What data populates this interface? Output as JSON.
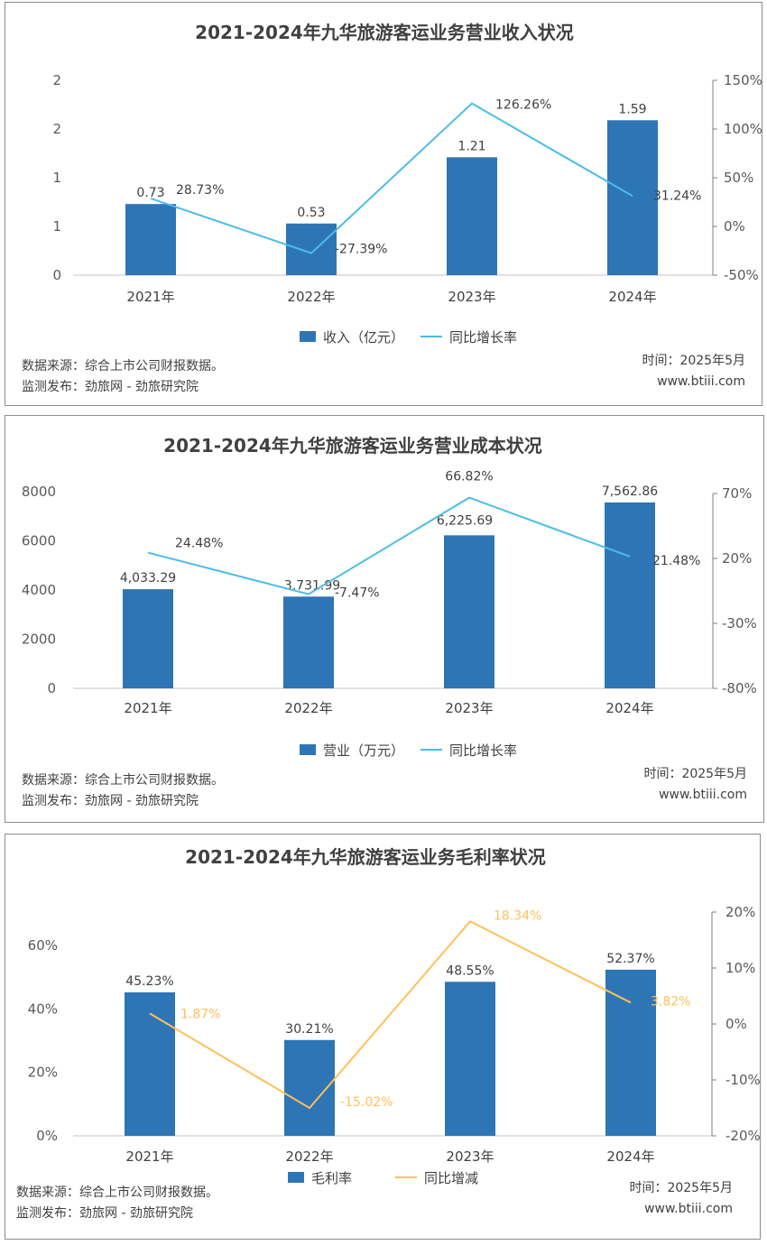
{
  "source_label": "数据来源：综合上市公司财报数据。",
  "publisher_label": "监测发布：劲旅网 - 劲旅研究院",
  "time_label": "时间：2025年5月",
  "site_label": "www.btiii.com",
  "colors": {
    "bar": "#2e75b6",
    "line_blue": "#4bbde8",
    "line_orange": "#ffc05a",
    "axis": "#d9d9d9"
  },
  "chart_data": [
    {
      "type": "bar",
      "title": "2021-2024年九华旅游客运业务营业收入状况",
      "categories": [
        "2021年",
        "2022年",
        "2023年",
        "2024年"
      ],
      "series": [
        {
          "name": "收入（亿元）",
          "type": "bar",
          "axis": "left",
          "values": [
            0.73,
            0.53,
            1.21,
            1.59
          ],
          "labels": [
            "0.73",
            "0.53",
            "1.21",
            "1.59"
          ]
        },
        {
          "name": "同比增长率",
          "type": "line",
          "axis": "right",
          "values": [
            28.73,
            -27.39,
            126.26,
            31.24
          ],
          "labels": [
            "28.73%",
            "-27.39%",
            "126.26%",
            "31.24%"
          ]
        }
      ],
      "y_left": {
        "range": [
          0,
          2
        ],
        "ticks": [
          "0",
          "1",
          "1",
          "2",
          "2"
        ]
      },
      "y_right": {
        "range": [
          -50,
          150
        ],
        "ticks": [
          "-50%",
          "0%",
          "50%",
          "100%",
          "150%"
        ]
      },
      "legend": "bottom"
    },
    {
      "type": "bar",
      "title": "2021-2024年九华旅游客运业务营业成本状况",
      "categories": [
        "2021年",
        "2022年",
        "2023年",
        "2024年"
      ],
      "series": [
        {
          "name": "营业（万元）",
          "type": "bar",
          "axis": "left",
          "values": [
            4033.29,
            3731.99,
            6225.69,
            7562.86
          ],
          "labels": [
            "4,033.29",
            "3,731.99",
            "6,225.69",
            "7,562.86"
          ]
        },
        {
          "name": "同比增长率",
          "type": "line",
          "axis": "right",
          "values": [
            24.48,
            -7.47,
            66.82,
            21.48
          ],
          "labels": [
            "24.48%",
            "-7.47%",
            "66.82%",
            "21.48%"
          ]
        }
      ],
      "y_left": {
        "range": [
          0,
          8000
        ],
        "ticks": [
          "0",
          "2000",
          "4000",
          "6000",
          "8000"
        ]
      },
      "y_right": {
        "range": [
          -80,
          70
        ],
        "ticks": [
          "-80%",
          "-30%",
          "20%",
          "70%"
        ]
      },
      "legend": "bottom"
    },
    {
      "type": "bar",
      "title": "2021-2024年九华旅游客运业务毛利率状况",
      "categories": [
        "2021年",
        "2022年",
        "2023年",
        "2024年"
      ],
      "series": [
        {
          "name": "毛利率",
          "type": "bar",
          "axis": "left",
          "values": [
            45.23,
            30.21,
            48.55,
            52.37
          ],
          "labels": [
            "45.23%",
            "30.21%",
            "48.55%",
            "52.37%"
          ]
        },
        {
          "name": "同比增减",
          "type": "line",
          "axis": "right",
          "values": [
            1.87,
            -15.02,
            18.34,
            3.82
          ],
          "labels": [
            "1.87%",
            "-15.02%",
            "18.34%",
            "3.82%"
          ]
        }
      ],
      "y_left": {
        "range": [
          0,
          60
        ],
        "ticks": [
          "0%",
          "20%",
          "40%",
          "60%"
        ]
      },
      "y_right": {
        "range": [
          -20,
          20
        ],
        "ticks": [
          "-20%",
          "-10%",
          "0%",
          "10%",
          "20%"
        ]
      },
      "legend": "bottom"
    }
  ]
}
